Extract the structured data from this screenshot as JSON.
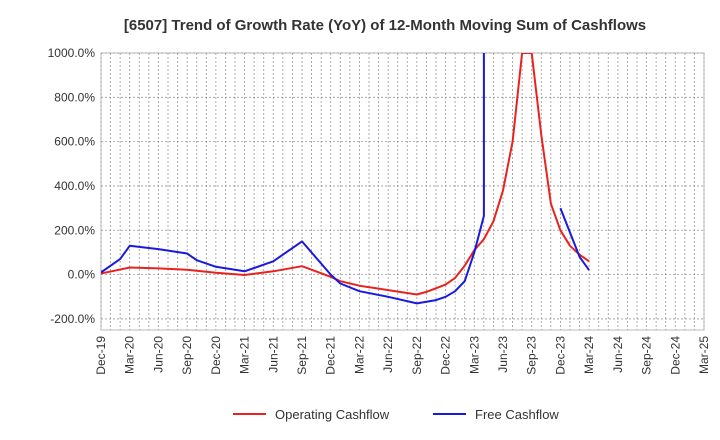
{
  "chart_data": {
    "type": "line",
    "title": "[6507]  Trend of Growth Rate (YoY) of 12-Month Moving Sum of Cashflows",
    "xlabel": "",
    "ylabel": "",
    "ylim": [
      -250,
      1000
    ],
    "y_ticks": [
      "1000.0%",
      "800.0%",
      "600.0%",
      "400.0%",
      "200.0%",
      "0.0%",
      "-200.0%"
    ],
    "y_tick_values": [
      1000,
      800,
      600,
      400,
      200,
      0,
      -200
    ],
    "x_tick_labels": [
      "Dec-19",
      "Mar-20",
      "Jun-20",
      "Sep-20",
      "Dec-20",
      "Mar-21",
      "Jun-21",
      "Sep-21",
      "Dec-21",
      "Mar-22",
      "Jun-22",
      "Sep-22",
      "Dec-22",
      "Mar-23",
      "Jun-23",
      "Sep-23",
      "Dec-23",
      "Mar-24",
      "Jun-24",
      "Sep-24",
      "Dec-24",
      "Mar-25"
    ],
    "grid": true,
    "legend_position": "bottom",
    "series": [
      {
        "name": "Operating Cashflow",
        "color": "#e8231f",
        "points": [
          [
            "2019-12",
            5
          ],
          [
            "2020-03",
            32
          ],
          [
            "2020-06",
            28
          ],
          [
            "2020-09",
            22
          ],
          [
            "2020-12",
            8
          ],
          [
            "2021-03",
            -2
          ],
          [
            "2021-06",
            15
          ],
          [
            "2021-09",
            38
          ],
          [
            "2021-12",
            -10
          ],
          [
            "2022-01",
            -30
          ],
          [
            "2022-03",
            -50
          ],
          [
            "2022-06",
            -70
          ],
          [
            "2022-09",
            -90
          ],
          [
            "2022-10",
            -78
          ],
          [
            "2022-12",
            -45
          ],
          [
            "2023-01",
            -15
          ],
          [
            "2023-02",
            40
          ],
          [
            "2023-03",
            110
          ],
          [
            "2023-04",
            160
          ],
          [
            "2023-05",
            240
          ],
          [
            "2023-06",
            380
          ],
          [
            "2023-07",
            600
          ],
          [
            "2023-08",
            1000
          ],
          [
            "2023-09",
            1000
          ],
          [
            "2023-10",
            630
          ],
          [
            "2023-11",
            320
          ],
          [
            "2023-12",
            200
          ],
          [
            "2024-01",
            130
          ],
          [
            "2024-02",
            90
          ],
          [
            "2024-03",
            60
          ]
        ]
      },
      {
        "name": "Free Cashflow",
        "color": "#1a1adc",
        "segments": [
          [
            [
              "2019-12",
              10
            ],
            [
              "2020-02",
              70
            ],
            [
              "2020-03",
              130
            ],
            [
              "2020-06",
              115
            ],
            [
              "2020-09",
              95
            ],
            [
              "2020-10",
              65
            ],
            [
              "2020-12",
              35
            ],
            [
              "2021-03",
              15
            ],
            [
              "2021-06",
              60
            ],
            [
              "2021-09",
              150
            ],
            [
              "2021-11",
              50
            ],
            [
              "2021-12",
              0
            ],
            [
              "2022-01",
              -40
            ],
            [
              "2022-03",
              -75
            ],
            [
              "2022-06",
              -100
            ],
            [
              "2022-09",
              -130
            ],
            [
              "2022-11",
              -115
            ],
            [
              "2022-12",
              -100
            ],
            [
              "2023-01",
              -75
            ],
            [
              "2023-02",
              -30
            ],
            [
              "2023-03",
              100
            ],
            [
              "2023-04",
              265
            ],
            [
              "2023-04",
              1000
            ]
          ],
          [
            [
              "2023-12",
              300
            ],
            [
              "2024-02",
              80
            ],
            [
              "2024-03",
              20
            ]
          ]
        ]
      }
    ]
  }
}
